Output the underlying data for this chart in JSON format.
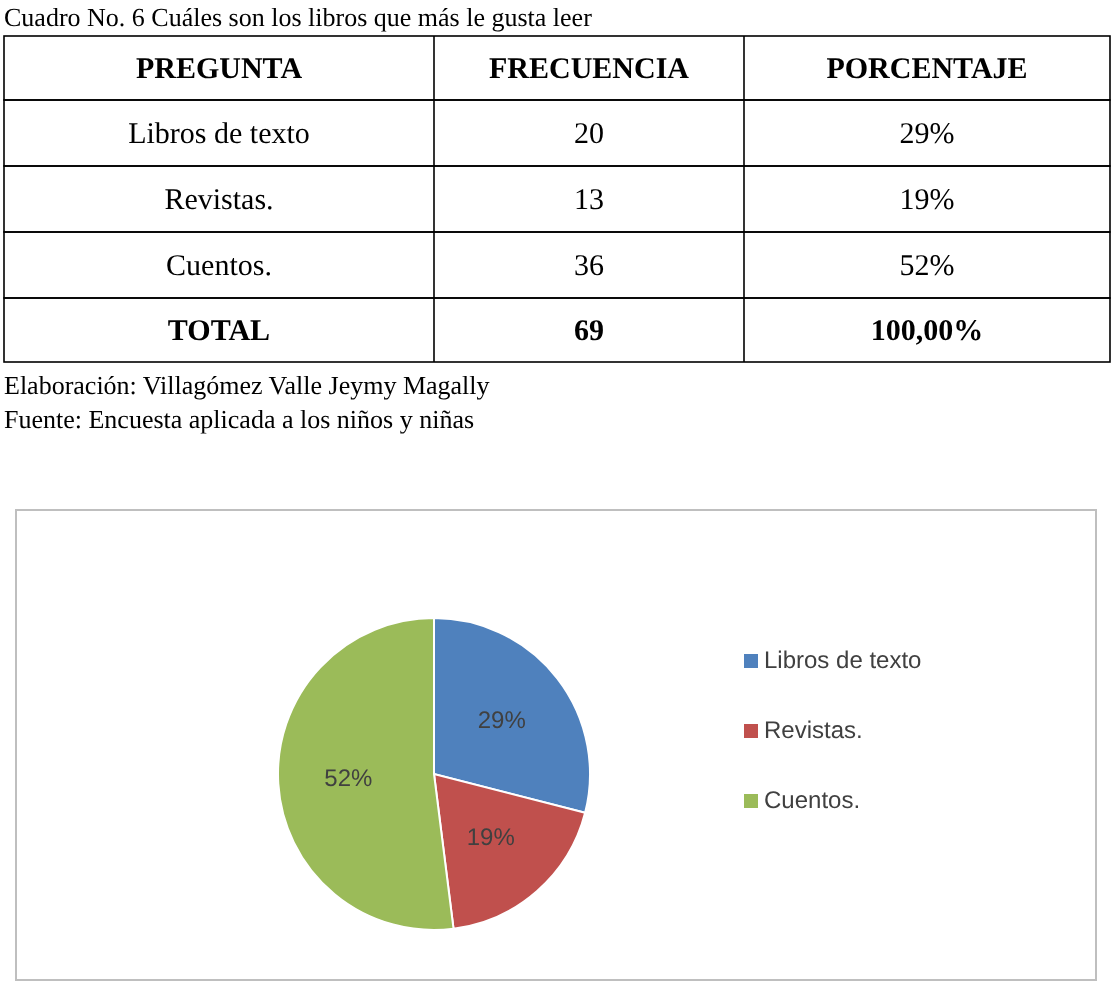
{
  "chart_data": {
    "type": "pie",
    "title": "Cuadro No. 6 Cuáles son los libros que más le gusta leer",
    "categories": [
      "Libros de texto",
      "Revistas.",
      "Cuentos."
    ],
    "values": [
      29,
      19,
      52
    ],
    "value_labels": [
      "29%",
      "19%",
      "52%"
    ],
    "colors": [
      "#4f81bd",
      "#c0504d",
      "#9bbb59"
    ],
    "legend": "right",
    "annotations": [
      "PREGUNTA",
      "FRECUENCIA",
      "PORCENTAJE",
      "20",
      "13",
      "36",
      "TOTAL",
      "69",
      "100,00%",
      "Elaboración: Villagómez Valle Jeymy Magally",
      "Fuente: Encuesta aplicada a los niños y niñas"
    ]
  }
}
